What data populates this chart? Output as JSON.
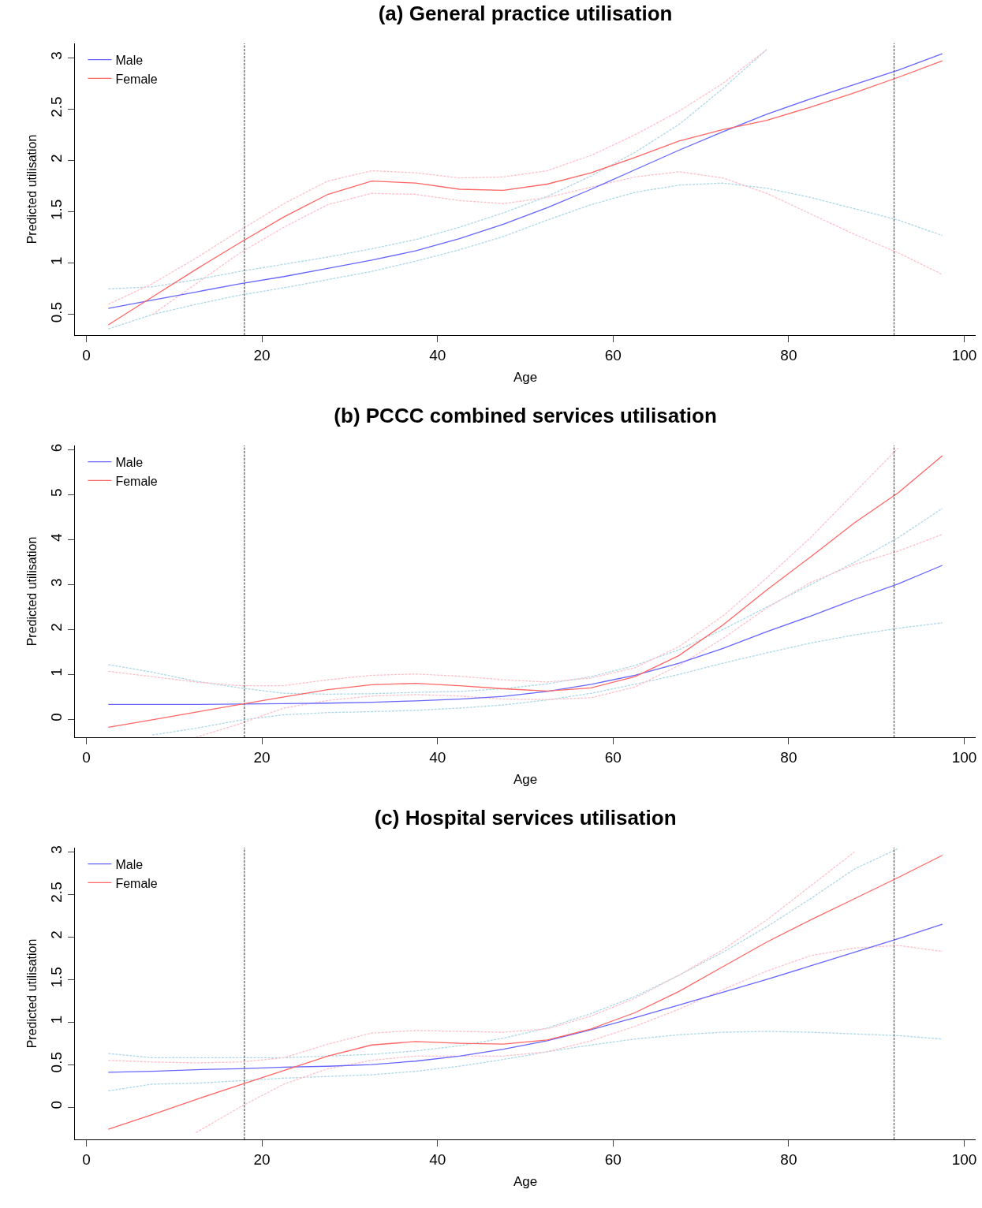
{
  "chart_data": [
    {
      "type": "line",
      "title": "(a) General practice utilisation",
      "xlabel": "Age",
      "ylabel": "Predicted utilisation",
      "legend": "top left",
      "grid": false,
      "line_style": "solid",
      "marker": "none",
      "xlim": [
        -1.3,
        101.3
      ],
      "xticks": [
        0,
        20,
        40,
        60,
        80,
        100
      ],
      "ylim": [
        0.3,
        3.14
      ],
      "yticks": [
        0.5,
        1.0,
        1.5,
        2.0,
        2.5,
        3.0
      ],
      "ref_lines": [
        {
          "axis": "x",
          "value": 18,
          "color": "#555555",
          "line_style": "dashed"
        },
        {
          "axis": "x",
          "value": 92,
          "color": "#555555",
          "line_style": "dashed"
        }
      ],
      "x": [
        2.5,
        7.5,
        12.5,
        17.5,
        22.5,
        27.5,
        32.5,
        37.5,
        42.5,
        47.5,
        52.5,
        57.5,
        62.5,
        67.5,
        72.5,
        77.5,
        82.5,
        87.5,
        92.5,
        97.5
      ],
      "series": [
        {
          "color": "#add8e6",
          "line_style": "dashed",
          "values": [
            0.75,
            0.77,
            0.84,
            0.92,
            0.99,
            1.06,
            1.14,
            1.23,
            1.35,
            1.49,
            1.65,
            1.85,
            2.08,
            2.35,
            2.7,
            3.08,
            null,
            null,
            null,
            null
          ]
        },
        {
          "color": "#add8e6",
          "line_style": "dashed",
          "values": [
            0.36,
            0.5,
            0.6,
            0.69,
            0.76,
            0.84,
            0.92,
            1.02,
            1.13,
            1.26,
            1.42,
            1.57,
            1.69,
            1.76,
            1.78,
            1.73,
            1.64,
            1.53,
            1.42,
            1.27
          ]
        },
        {
          "color": "#ffc0cb",
          "line_style": "dashed",
          "values": [
            0.6,
            0.8,
            1.05,
            1.32,
            1.58,
            1.8,
            1.9,
            1.88,
            1.83,
            1.84,
            1.9,
            2.05,
            2.25,
            2.48,
            2.75,
            3.08,
            null,
            null,
            null,
            null
          ]
        },
        {
          "color": "#ffc0cb",
          "line_style": "dashed",
          "values": [
            null,
            0.5,
            0.8,
            1.1,
            1.35,
            1.57,
            1.68,
            1.67,
            1.61,
            1.58,
            1.64,
            1.74,
            1.84,
            1.89,
            1.83,
            1.68,
            1.48,
            1.28,
            1.1,
            0.89
          ]
        },
        {
          "name": "Male",
          "color": "#6666ff",
          "values": [
            0.56,
            0.64,
            0.72,
            0.8,
            0.87,
            0.95,
            1.03,
            1.12,
            1.24,
            1.38,
            1.54,
            1.72,
            1.91,
            2.1,
            2.28,
            2.45,
            2.6,
            2.74,
            2.88,
            3.04
          ]
        },
        {
          "name": "Female",
          "color": "#ff6666",
          "values": [
            0.4,
            0.67,
            0.94,
            1.2,
            1.45,
            1.67,
            1.8,
            1.78,
            1.72,
            1.71,
            1.77,
            1.88,
            2.03,
            2.19,
            2.3,
            2.39,
            2.52,
            2.66,
            2.81,
            2.97
          ]
        }
      ]
    },
    {
      "type": "line",
      "title": "(b) PCCC combined services utilisation",
      "xlabel": "Age",
      "ylabel": "Predicted utilisation",
      "legend": "top left",
      "grid": false,
      "line_style": "solid",
      "marker": "none",
      "xlim": [
        -1.3,
        101.3
      ],
      "xticks": [
        0,
        20,
        40,
        60,
        80,
        100
      ],
      "ylim": [
        -0.4,
        6.1
      ],
      "yticks": [
        0,
        1,
        2,
        3,
        4,
        5,
        6
      ],
      "ref_lines": [
        {
          "axis": "x",
          "value": 18,
          "color": "#555555",
          "line_style": "dashed"
        },
        {
          "axis": "x",
          "value": 92,
          "color": "#555555",
          "line_style": "dashed"
        }
      ],
      "x": [
        2.5,
        7.5,
        12.5,
        17.5,
        22.5,
        27.5,
        32.5,
        37.5,
        42.5,
        47.5,
        52.5,
        57.5,
        62.5,
        67.5,
        72.5,
        77.5,
        82.5,
        87.5,
        92.5,
        97.5
      ],
      "series": [
        {
          "color": "#add8e6",
          "line_style": "dashed",
          "values": [
            1.22,
            1.05,
            0.85,
            0.7,
            0.58,
            0.56,
            0.57,
            0.6,
            0.62,
            0.68,
            0.79,
            0.95,
            1.2,
            1.55,
            2.0,
            2.5,
            3.0,
            3.5,
            4.05,
            4.7
          ]
        },
        {
          "color": "#add8e6",
          "line_style": "dashed",
          "values": [
            null,
            -0.35,
            -0.2,
            -0.02,
            0.1,
            0.15,
            0.17,
            0.2,
            0.25,
            0.32,
            0.43,
            0.58,
            0.78,
            1.0,
            1.25,
            1.48,
            1.7,
            1.88,
            2.03,
            2.15
          ]
        },
        {
          "color": "#ffc0cb",
          "line_style": "dashed",
          "values": [
            1.07,
            0.95,
            0.83,
            0.75,
            0.75,
            0.88,
            0.98,
            1.01,
            0.96,
            0.88,
            0.83,
            0.92,
            1.15,
            1.62,
            2.3,
            3.15,
            4.05,
            5.05,
            6.05,
            null
          ]
        },
        {
          "color": "#ffc0cb",
          "line_style": "dashed",
          "values": [
            null,
            null,
            -0.4,
            -0.1,
            0.25,
            0.42,
            0.52,
            0.55,
            0.52,
            0.45,
            0.44,
            0.48,
            0.72,
            1.2,
            1.8,
            2.48,
            3.05,
            3.45,
            3.75,
            4.12
          ]
        },
        {
          "name": "Male",
          "color": "#6666ff",
          "values": [
            0.33,
            0.33,
            0.33,
            0.34,
            0.35,
            0.36,
            0.38,
            0.41,
            0.45,
            0.51,
            0.62,
            0.78,
            0.98,
            1.25,
            1.58,
            1.95,
            2.3,
            2.67,
            3.02,
            3.43
          ]
        },
        {
          "name": "Female",
          "color": "#ff6666",
          "values": [
            -0.18,
            -0.01,
            0.16,
            0.33,
            0.5,
            0.66,
            0.77,
            0.8,
            0.75,
            0.68,
            0.63,
            0.7,
            0.95,
            1.42,
            2.1,
            2.88,
            3.62,
            4.38,
            5.05,
            5.87
          ]
        }
      ]
    },
    {
      "type": "line",
      "title": "(c) Hospital services utilisation",
      "xlabel": "Age",
      "ylabel": "Predicted utilisation",
      "legend": "top left",
      "grid": false,
      "line_style": "solid",
      "marker": "none",
      "xlim": [
        -1.3,
        101.3
      ],
      "xticks": [
        0,
        20,
        40,
        60,
        80,
        100
      ],
      "ylim": [
        -0.38,
        3.05
      ],
      "yticks": [
        0.0,
        0.5,
        1.0,
        1.5,
        2.0,
        2.5,
        3.0
      ],
      "ref_lines": [
        {
          "axis": "x",
          "value": 18,
          "color": "#555555",
          "line_style": "dashed"
        },
        {
          "axis": "x",
          "value": 92,
          "color": "#555555",
          "line_style": "dashed"
        }
      ],
      "x": [
        2.5,
        7.5,
        12.5,
        17.5,
        22.5,
        27.5,
        32.5,
        37.5,
        42.5,
        47.5,
        52.5,
        57.5,
        62.5,
        67.5,
        72.5,
        77.5,
        82.5,
        87.5,
        92.5,
        97.5
      ],
      "series": [
        {
          "color": "#add8e6",
          "line_style": "dashed",
          "values": [
            0.63,
            0.58,
            0.58,
            0.58,
            0.58,
            0.6,
            0.62,
            0.66,
            0.72,
            0.81,
            0.93,
            1.1,
            1.3,
            1.55,
            1.82,
            2.12,
            2.45,
            2.8,
            3.04,
            null
          ]
        },
        {
          "color": "#add8e6",
          "line_style": "dashed",
          "values": [
            0.19,
            0.27,
            0.28,
            0.31,
            0.34,
            0.36,
            0.38,
            0.42,
            0.48,
            0.56,
            0.65,
            0.73,
            0.8,
            0.85,
            0.88,
            0.89,
            0.88,
            0.86,
            0.84,
            0.8
          ]
        },
        {
          "color": "#ffc0cb",
          "line_style": "dashed",
          "values": [
            0.55,
            0.53,
            0.52,
            0.53,
            0.58,
            0.74,
            0.87,
            0.9,
            0.89,
            0.88,
            0.92,
            1.07,
            1.28,
            1.55,
            1.85,
            2.2,
            2.6,
            3.0,
            null,
            null
          ]
        },
        {
          "color": "#ffc0cb",
          "line_style": "dashed",
          "values": [
            null,
            null,
            -0.3,
            0.0,
            0.27,
            0.45,
            0.55,
            0.6,
            0.6,
            0.6,
            0.65,
            0.78,
            0.95,
            1.15,
            1.38,
            1.6,
            1.78,
            1.87,
            1.9,
            1.83
          ]
        },
        {
          "name": "Male",
          "color": "#6666ff",
          "values": [
            0.41,
            0.42,
            0.44,
            0.45,
            0.47,
            0.48,
            0.5,
            0.54,
            0.6,
            0.68,
            0.78,
            0.91,
            1.05,
            1.2,
            1.35,
            1.5,
            1.66,
            1.82,
            1.98,
            2.15
          ]
        },
        {
          "name": "Female",
          "color": "#ff6666",
          "values": [
            -0.26,
            -0.09,
            0.09,
            0.26,
            0.43,
            0.6,
            0.73,
            0.77,
            0.75,
            0.74,
            0.79,
            0.92,
            1.11,
            1.36,
            1.65,
            1.94,
            2.2,
            2.45,
            2.7,
            2.96
          ]
        }
      ]
    }
  ]
}
